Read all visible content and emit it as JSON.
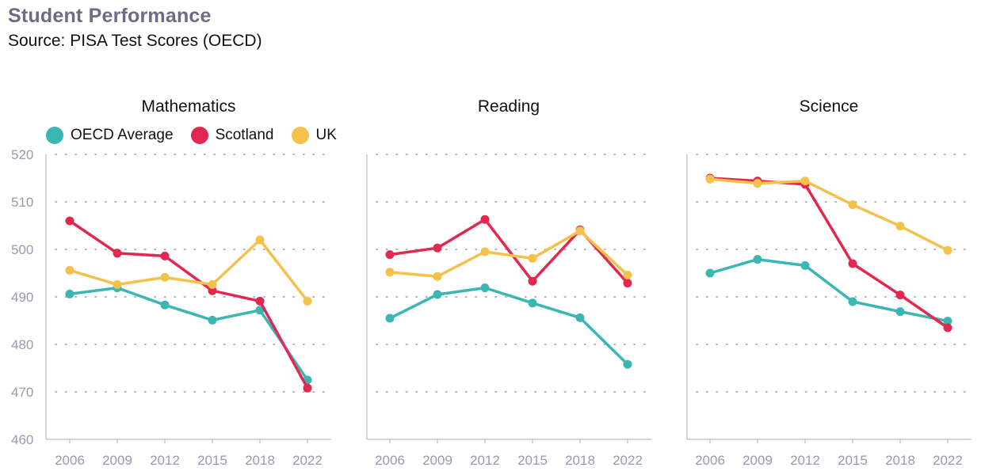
{
  "header": {
    "title": "Student Performance",
    "subtitle": "Source: PISA Test Scores (OECD)"
  },
  "chart_data": {
    "type": "line",
    "x": [
      "2006",
      "2009",
      "2012",
      "2015",
      "2018",
      "2022"
    ],
    "ylim": [
      460,
      520
    ],
    "yticks": [
      460,
      470,
      480,
      490,
      500,
      510,
      520
    ],
    "grid": true,
    "grid_style": "dotted",
    "legend_position": "top-left",
    "series_meta": [
      {
        "name": "OECD Average",
        "color": "#3ab7b3"
      },
      {
        "name": "Scotland",
        "color": "#e3284f"
      },
      {
        "name": "UK",
        "color": "#f4c24a"
      }
    ],
    "panels": [
      {
        "title": "Mathematics",
        "series": [
          {
            "name": "OECD Average",
            "values": [
              490.6,
              491.9,
              488.3,
              485.1,
              487.2,
              472.5
            ]
          },
          {
            "name": "Scotland",
            "values": [
              506.0,
              499.2,
              498.6,
              491.3,
              489.1,
              470.8
            ]
          },
          {
            "name": "UK",
            "values": [
              495.6,
              492.6,
              494.1,
              492.6,
              502.0,
              489.1
            ]
          }
        ]
      },
      {
        "title": "Reading",
        "series": [
          {
            "name": "OECD Average",
            "values": [
              485.5,
              490.5,
              491.9,
              488.7,
              485.6,
              475.8
            ]
          },
          {
            "name": "Scotland",
            "values": [
              498.9,
              500.3,
              506.3,
              493.3,
              504.1,
              492.9
            ]
          },
          {
            "name": "UK",
            "values": [
              495.2,
              494.3,
              499.5,
              498.1,
              503.9,
              494.6
            ]
          }
        ]
      },
      {
        "title": "Science",
        "series": [
          {
            "name": "OECD Average",
            "values": [
              495.0,
              497.9,
              496.6,
              489.0,
              486.9,
              484.9
            ]
          },
          {
            "name": "Scotland",
            "values": [
              515.0,
              514.4,
              513.7,
              497.0,
              490.4,
              483.5
            ]
          },
          {
            "name": "UK",
            "values": [
              514.8,
              513.9,
              514.4,
              509.4,
              504.9,
              499.8
            ]
          }
        ]
      }
    ]
  }
}
